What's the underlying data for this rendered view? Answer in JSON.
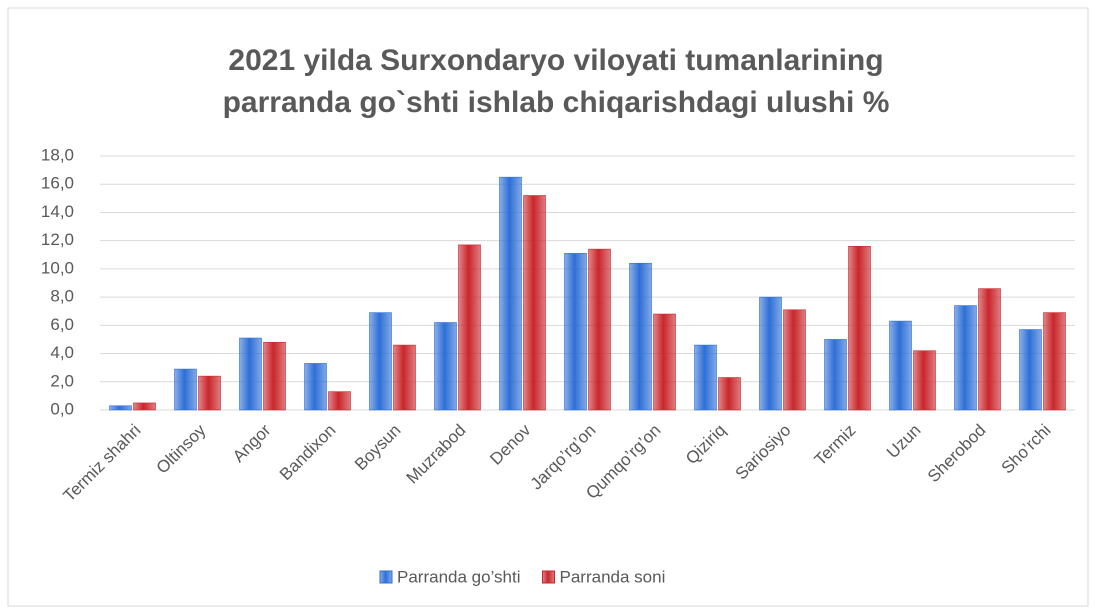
{
  "chart_data": {
    "type": "bar",
    "title": [
      "2021 yilda Surxondaryo viloyati tumanlarining",
      "parranda go`shti  ishlab chiqarishdagi ulushi %"
    ],
    "categories": [
      "Termiz shahri",
      "Oltinsoy",
      "Angor",
      "Bandixon",
      "Boysun",
      "Muzrabod",
      "Denov",
      "Jarqo’rg’on",
      "Qumqo’rg’on",
      "Qiziriq",
      "Sariosiyo",
      "Termiz",
      "Uzun",
      "Sherobod",
      "Sho’rchi"
    ],
    "series": [
      {
        "name": "Parranda go’shti",
        "color": "#2e6fd6",
        "values": [
          0.3,
          2.9,
          5.1,
          3.3,
          6.9,
          6.2,
          16.5,
          11.1,
          10.4,
          4.6,
          8.0,
          5.0,
          6.3,
          7.4,
          5.7
        ]
      },
      {
        "name": "Parranda soni",
        "color": "#c9262b",
        "values": [
          0.5,
          2.4,
          4.8,
          1.3,
          4.6,
          11.7,
          15.2,
          11.4,
          6.8,
          2.3,
          7.1,
          11.6,
          4.2,
          8.6,
          6.9
        ]
      }
    ],
    "ylim": [
      0,
      18
    ],
    "yticks": [
      {
        "value": 0,
        "label": "0,0"
      },
      {
        "value": 2,
        "label": "2,0"
      },
      {
        "value": 4,
        "label": "4,0"
      },
      {
        "value": 6,
        "label": "6,0"
      },
      {
        "value": 8,
        "label": "8,0"
      },
      {
        "value": 10,
        "label": "10,0"
      },
      {
        "value": 12,
        "label": "12,0"
      },
      {
        "value": 14,
        "label": "14,0"
      },
      {
        "value": 16,
        "label": "16,0"
      },
      {
        "value": 18,
        "label": "18,0"
      }
    ],
    "grid": true,
    "legend": "bottom"
  }
}
